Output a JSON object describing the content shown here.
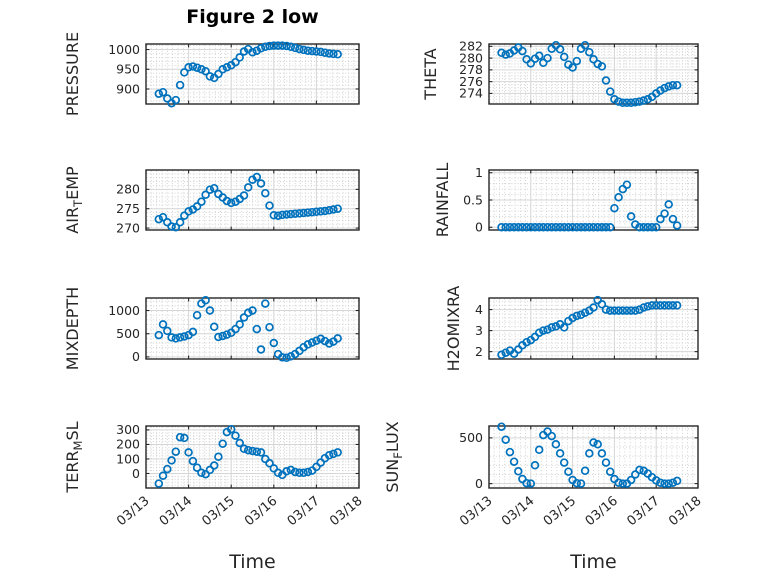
{
  "figure": {
    "background": "#ffffff"
  },
  "chart_data": {
    "type": "scatter",
    "title": "Figure 2 low",
    "xlabel": "Time",
    "x_range_days": [
      13,
      18
    ],
    "x_tick_values": [
      13,
      14,
      15,
      16,
      17,
      18
    ],
    "x_tick_labels": [
      "03/13",
      "03/14",
      "03/15",
      "03/16",
      "03/17",
      "03/18"
    ],
    "x_minor_step_days": 0.125,
    "grid": "major-solid-minor-dotted",
    "legend": "none",
    "marker": {
      "shape": "open-circle",
      "color": "#0072BD"
    },
    "style": {
      "axis_color": "#262626",
      "grid_major_color": "#d6d6d6",
      "grid_minor_color": "#cdcdcd",
      "title_color": "#000000"
    },
    "x_days": [
      13.3,
      13.4,
      13.5,
      13.6,
      13.7,
      13.8,
      13.9,
      14.0,
      14.1,
      14.2,
      14.3,
      14.4,
      14.5,
      14.6,
      14.7,
      14.8,
      14.9,
      15.0,
      15.1,
      15.2,
      15.3,
      15.4,
      15.5,
      15.6,
      15.7,
      15.8,
      15.9,
      16.0,
      16.1,
      16.2,
      16.3,
      16.4,
      16.5,
      16.6,
      16.7,
      16.8,
      16.9,
      17.0,
      17.1,
      17.2,
      17.3,
      17.4,
      17.5
    ],
    "subplots": [
      {
        "id": "pressure",
        "label": "PRESSURE",
        "row": 0,
        "col": 0,
        "ylabel_parts": [
          {
            "text": "PRESSURE",
            "sub": false
          }
        ],
        "yticks": [
          900,
          950,
          1000
        ],
        "ylim": [
          862,
          1014
        ],
        "y_minor_step": 10,
        "y": [
          888,
          892,
          876,
          864,
          872,
          910,
          942,
          955,
          957,
          954,
          950,
          945,
          932,
          928,
          938,
          950,
          955,
          960,
          968,
          980,
          995,
          1001,
          993,
          997,
          1003,
          1007,
          1009,
          1010,
          1010,
          1010,
          1009,
          1007,
          1004,
          1001,
          999,
          997,
          996,
          995,
          994,
          992,
          990,
          989,
          988
        ]
      },
      {
        "id": "theta",
        "label": "THETA",
        "row": 0,
        "col": 1,
        "ylabel_parts": [
          {
            "text": "THETA",
            "sub": false
          }
        ],
        "yticks": [
          274,
          276,
          278,
          280,
          282
        ],
        "ylim": [
          272.2,
          282.4
        ],
        "y_minor_step": 0.5,
        "y": [
          280.9,
          280.6,
          280.8,
          281.3,
          281.8,
          281.2,
          279.8,
          279.1,
          279.9,
          280.4,
          279.2,
          280.0,
          281.6,
          282.2,
          281.5,
          280.2,
          278.9,
          278.4,
          279.5,
          281.6,
          282.2,
          281.0,
          279.8,
          279.0,
          278.6,
          276.2,
          274.3,
          273.0,
          272.6,
          272.4,
          272.4,
          272.4,
          272.5,
          272.6,
          272.8,
          273.0,
          273.4,
          274.0,
          274.5,
          274.9,
          275.2,
          275.4,
          275.4
        ]
      },
      {
        "id": "air-temp",
        "label": "AIR_TEMP",
        "row": 1,
        "col": 0,
        "ylabel_parts": [
          {
            "text": "AIR",
            "sub": false
          },
          {
            "text": "T",
            "sub": true
          },
          {
            "text": "EMP",
            "sub": false
          }
        ],
        "yticks": [
          270,
          275,
          280
        ],
        "ylim": [
          269.5,
          285.0
        ],
        "y_minor_step": 1,
        "y": [
          272.3,
          272.8,
          271.5,
          270.4,
          270.2,
          271.5,
          273.2,
          274.3,
          274.8,
          275.6,
          276.8,
          278.6,
          279.9,
          280.3,
          278.8,
          277.9,
          277.0,
          276.5,
          276.8,
          277.5,
          278.4,
          280.5,
          282.5,
          283.2,
          281.5,
          279.0,
          275.8,
          273.3,
          273.2,
          273.4,
          273.5,
          273.6,
          273.7,
          273.8,
          273.9,
          274.0,
          274.1,
          274.2,
          274.3,
          274.4,
          274.6,
          274.8,
          275.0
        ]
      },
      {
        "id": "rainfall",
        "label": "RAINFALL",
        "row": 1,
        "col": 1,
        "ylabel_parts": [
          {
            "text": "RAINFALL",
            "sub": false
          }
        ],
        "yticks": [
          0,
          0.5,
          1
        ],
        "ylim": [
          -0.05,
          1.05
        ],
        "y_minor_step": 0.1,
        "y": [
          0,
          0,
          0,
          0,
          0,
          0,
          0,
          0,
          0,
          0,
          0,
          0,
          0,
          0,
          0,
          0,
          0,
          0,
          0,
          0,
          0,
          0,
          0,
          0,
          0,
          0,
          0,
          0.35,
          0.55,
          0.7,
          0.78,
          0.2,
          0.05,
          0,
          0,
          0,
          0,
          0,
          0.15,
          0.25,
          0.42,
          0.15,
          0.03
        ]
      },
      {
        "id": "mixdepth",
        "label": "MIXDEPTH",
        "row": 2,
        "col": 0,
        "ylabel_parts": [
          {
            "text": "MIXDEPTH",
            "sub": false
          }
        ],
        "yticks": [
          0,
          500,
          1000
        ],
        "ylim": [
          -45,
          1270
        ],
        "y_minor_step": 100,
        "y": [
          470,
          700,
          560,
          420,
          400,
          420,
          440,
          470,
          540,
          900,
          1150,
          1220,
          1000,
          650,
          430,
          450,
          480,
          520,
          600,
          700,
          850,
          950,
          1000,
          600,
          160,
          1150,
          640,
          300,
          60,
          -10,
          -20,
          10,
          60,
          130,
          210,
          270,
          310,
          350,
          390,
          340,
          290,
          330,
          400
        ]
      },
      {
        "id": "h2omixra",
        "label": "H2OMIXRA",
        "row": 2,
        "col": 1,
        "ylabel_parts": [
          {
            "text": "H2OMIXRA",
            "sub": false
          }
        ],
        "yticks": [
          2,
          3,
          4
        ],
        "ylim": [
          1.65,
          4.55
        ],
        "y_minor_step": 0.2,
        "y": [
          1.85,
          1.95,
          2.05,
          1.9,
          2.1,
          2.3,
          2.45,
          2.55,
          2.7,
          2.9,
          3.0,
          3.05,
          3.15,
          3.2,
          3.3,
          3.15,
          3.45,
          3.6,
          3.7,
          3.75,
          3.85,
          3.95,
          4.1,
          4.45,
          4.25,
          4.0,
          3.95,
          3.95,
          3.95,
          3.95,
          3.95,
          3.95,
          3.95,
          4.0,
          4.1,
          4.15,
          4.2,
          4.2,
          4.2,
          4.2,
          4.2,
          4.2,
          4.2
        ]
      },
      {
        "id": "terr-msl",
        "label": "TERR_MSL",
        "row": 3,
        "col": 0,
        "ylabel_parts": [
          {
            "text": "TERR",
            "sub": false
          },
          {
            "text": "M",
            "sub": true
          },
          {
            "text": "SL",
            "sub": false
          }
        ],
        "yticks": [
          0,
          100,
          200,
          300
        ],
        "ylim": [
          -100,
          327
        ],
        "y_minor_step": 20,
        "y": [
          -70,
          -15,
          30,
          90,
          150,
          250,
          245,
          145,
          85,
          40,
          5,
          -5,
          25,
          55,
          115,
          205,
          285,
          305,
          260,
          210,
          170,
          160,
          155,
          150,
          145,
          100,
          70,
          35,
          5,
          -10,
          15,
          25,
          10,
          5,
          5,
          10,
          20,
          45,
          75,
          105,
          125,
          135,
          145
        ]
      },
      {
        "id": "sun-flux",
        "label": "SUN_FLUX",
        "row": 3,
        "col": 1,
        "ylabel_parts": [
          {
            "text": "SUN",
            "sub": false
          },
          {
            "text": "F",
            "sub": true
          },
          {
            "text": "LUX",
            "sub": false
          }
        ],
        "yticks": [
          0,
          500
        ],
        "ylim": [
          -48,
          630
        ],
        "y_minor_step": 100,
        "y": [
          622,
          480,
          345,
          240,
          135,
          50,
          5,
          0,
          200,
          370,
          530,
          570,
          520,
          430,
          330,
          230,
          130,
          40,
          5,
          0,
          140,
          330,
          450,
          430,
          330,
          230,
          130,
          50,
          10,
          0,
          0,
          40,
          100,
          150,
          140,
          110,
          70,
          35,
          10,
          0,
          0,
          10,
          30
        ]
      }
    ]
  }
}
